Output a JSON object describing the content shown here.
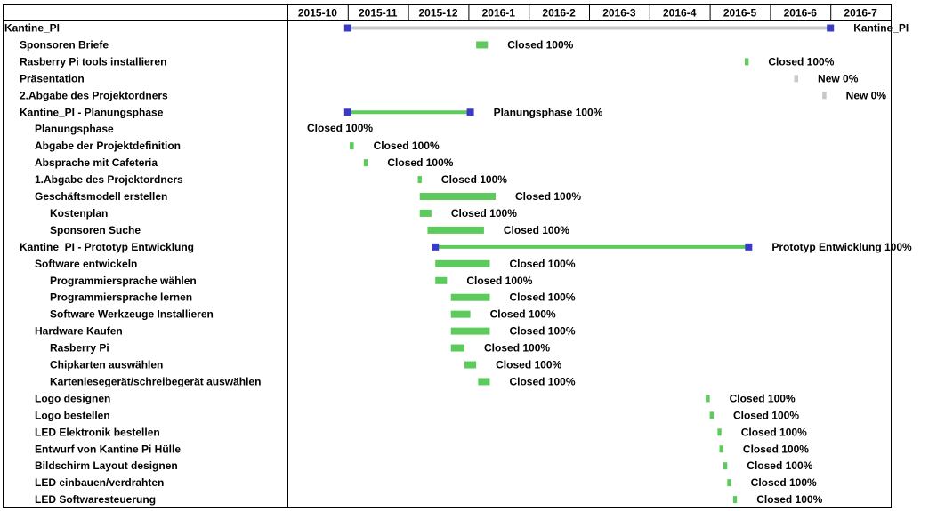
{
  "chart_data": {
    "type": "gantt",
    "months": [
      "2015-10",
      "2015-11",
      "2015-12",
      "2016-1",
      "2016-2",
      "2016-3",
      "2016-4",
      "2016-5",
      "2016-6",
      "2016-7"
    ],
    "colors": {
      "closed": "#5ccb5c",
      "new": "#c8c8c8",
      "milestone": "#3a3ac6",
      "grid": "#000000"
    },
    "tasks": [
      {
        "name": "Kantine_PI",
        "level": 0,
        "start": "2015-11-01",
        "end": "2016-06-30",
        "kind": "summary",
        "status": "",
        "label": "Kantine_PI",
        "color": "new"
      },
      {
        "name": "Sponsoren Briefe",
        "level": 1,
        "start": "2016-01-05",
        "end": "2016-01-10",
        "kind": "task",
        "status": "Closed",
        "label": "Closed 100%",
        "color": "closed"
      },
      {
        "name": "Rasberry Pi tools installieren",
        "level": 1,
        "start": "2016-05-19",
        "end": "2016-05-20",
        "kind": "task",
        "status": "Closed",
        "label": "Closed 100%",
        "color": "closed"
      },
      {
        "name": "Präsentation",
        "level": 1,
        "start": "2016-06-13",
        "end": "2016-06-14",
        "kind": "task",
        "status": "New",
        "label": "New 0%",
        "color": "new"
      },
      {
        "name": "2.Abgabe des Projektordners",
        "level": 1,
        "start": "2016-06-27",
        "end": "2016-06-28",
        "kind": "task",
        "status": "New",
        "label": "New 0%",
        "color": "new"
      },
      {
        "name": "Kantine_PI - Planungsphase",
        "level": 1,
        "start": "2015-11-01",
        "end": "2016-01-01",
        "kind": "summary",
        "status": "",
        "label": "Planungsphase 100%",
        "color": "closed"
      },
      {
        "name": "Planungsphase",
        "level": 2,
        "start": "",
        "end": "",
        "kind": "note",
        "status": "Closed",
        "label": "Closed 100%",
        "color": "closed"
      },
      {
        "name": "Abgabe der Projektdefinition",
        "level": 2,
        "start": "2015-11-02",
        "end": "2015-11-03",
        "kind": "task",
        "status": "Closed",
        "label": "Closed 100%",
        "color": "closed"
      },
      {
        "name": "Absprache mit Cafeteria",
        "level": 2,
        "start": "2015-11-09",
        "end": "2015-11-10",
        "kind": "task",
        "status": "Closed",
        "label": "Closed 100%",
        "color": "closed"
      },
      {
        "name": "1.Abgabe des Projektordners",
        "level": 2,
        "start": "2015-12-06",
        "end": "2015-12-07",
        "kind": "task",
        "status": "Closed",
        "label": "Closed 100%",
        "color": "closed"
      },
      {
        "name": "Geschäftsmodell erstellen",
        "level": 2,
        "start": "2015-12-07",
        "end": "2016-01-14",
        "kind": "task",
        "status": "Closed",
        "label": "Closed 100%",
        "color": "closed"
      },
      {
        "name": "Kostenplan",
        "level": 3,
        "start": "2015-12-07",
        "end": "2015-12-12",
        "kind": "task",
        "status": "Closed",
        "label": "Closed 100%",
        "color": "closed"
      },
      {
        "name": "Sponsoren Suche",
        "level": 3,
        "start": "2015-12-11",
        "end": "2016-01-08",
        "kind": "task",
        "status": "Closed",
        "label": "Closed 100%",
        "color": "closed"
      },
      {
        "name": "Kantine_PI - Prototyp Entwicklung",
        "level": 1,
        "start": "2015-12-15",
        "end": "2016-05-20",
        "kind": "summary",
        "status": "",
        "label": "Prototyp Entwicklung 100%",
        "color": "closed"
      },
      {
        "name": "Software entwickeln",
        "level": 2,
        "start": "2015-12-15",
        "end": "2016-01-11",
        "kind": "task",
        "status": "Closed",
        "label": "Closed 100%",
        "color": "closed"
      },
      {
        "name": "Programmiersprache wählen",
        "level": 3,
        "start": "2015-12-15",
        "end": "2015-12-20",
        "kind": "task",
        "status": "Closed",
        "label": "Closed 100%",
        "color": "closed"
      },
      {
        "name": "Programmiersprache lernen",
        "level": 3,
        "start": "2015-12-23",
        "end": "2016-01-11",
        "kind": "task",
        "status": "Closed",
        "label": "Closed 100%",
        "color": "closed"
      },
      {
        "name": "Software Werkzeuge Installieren",
        "level": 3,
        "start": "2015-12-23",
        "end": "2016-01-01",
        "kind": "task",
        "status": "Closed",
        "label": "Closed 100%",
        "color": "closed"
      },
      {
        "name": "Hardware Kaufen",
        "level": 2,
        "start": "2015-12-23",
        "end": "2016-01-11",
        "kind": "task",
        "status": "Closed",
        "label": "Closed 100%",
        "color": "closed"
      },
      {
        "name": "Rasberry Pi",
        "level": 3,
        "start": "2015-12-23",
        "end": "2015-12-29",
        "kind": "task",
        "status": "Closed",
        "label": "Closed 100%",
        "color": "closed"
      },
      {
        "name": "Chipkarten auswählen",
        "level": 3,
        "start": "2015-12-30",
        "end": "2016-01-04",
        "kind": "task",
        "status": "Closed",
        "label": "Closed 100%",
        "color": "closed"
      },
      {
        "name": "Kartenlesegerät/schreibegerät auswählen",
        "level": 3,
        "start": "2016-01-06",
        "end": "2016-01-11",
        "kind": "task",
        "status": "Closed",
        "label": "Closed 100%",
        "color": "closed"
      },
      {
        "name": "Logo designen",
        "level": 2,
        "start": "2016-04-29",
        "end": "2016-04-30",
        "kind": "task",
        "status": "Closed",
        "label": "Closed 100%",
        "color": "closed"
      },
      {
        "name": "Logo bestellen",
        "level": 2,
        "start": "2016-05-01",
        "end": "2016-05-02",
        "kind": "task",
        "status": "Closed",
        "label": "Closed 100%",
        "color": "closed"
      },
      {
        "name": "LED Elektronik bestellen",
        "level": 2,
        "start": "2016-05-05",
        "end": "2016-05-06",
        "kind": "task",
        "status": "Closed",
        "label": "Closed 100%",
        "color": "closed"
      },
      {
        "name": "Entwurf von Kantine Pi Hülle",
        "level": 2,
        "start": "2016-05-06",
        "end": "2016-05-07",
        "kind": "task",
        "status": "Closed",
        "label": "Closed 100%",
        "color": "closed"
      },
      {
        "name": "Bildschirm Layout designen",
        "level": 2,
        "start": "2016-05-08",
        "end": "2016-05-09",
        "kind": "task",
        "status": "Closed",
        "label": "Closed 100%",
        "color": "closed"
      },
      {
        "name": "LED einbauen/verdrahten",
        "level": 2,
        "start": "2016-05-10",
        "end": "2016-05-11",
        "kind": "task",
        "status": "Closed",
        "label": "Closed 100%",
        "color": "closed"
      },
      {
        "name": "LED Softwaresteuerung",
        "level": 2,
        "start": "2016-05-13",
        "end": "2016-05-14",
        "kind": "task",
        "status": "Closed",
        "label": "Closed 100%",
        "color": "closed"
      }
    ]
  }
}
